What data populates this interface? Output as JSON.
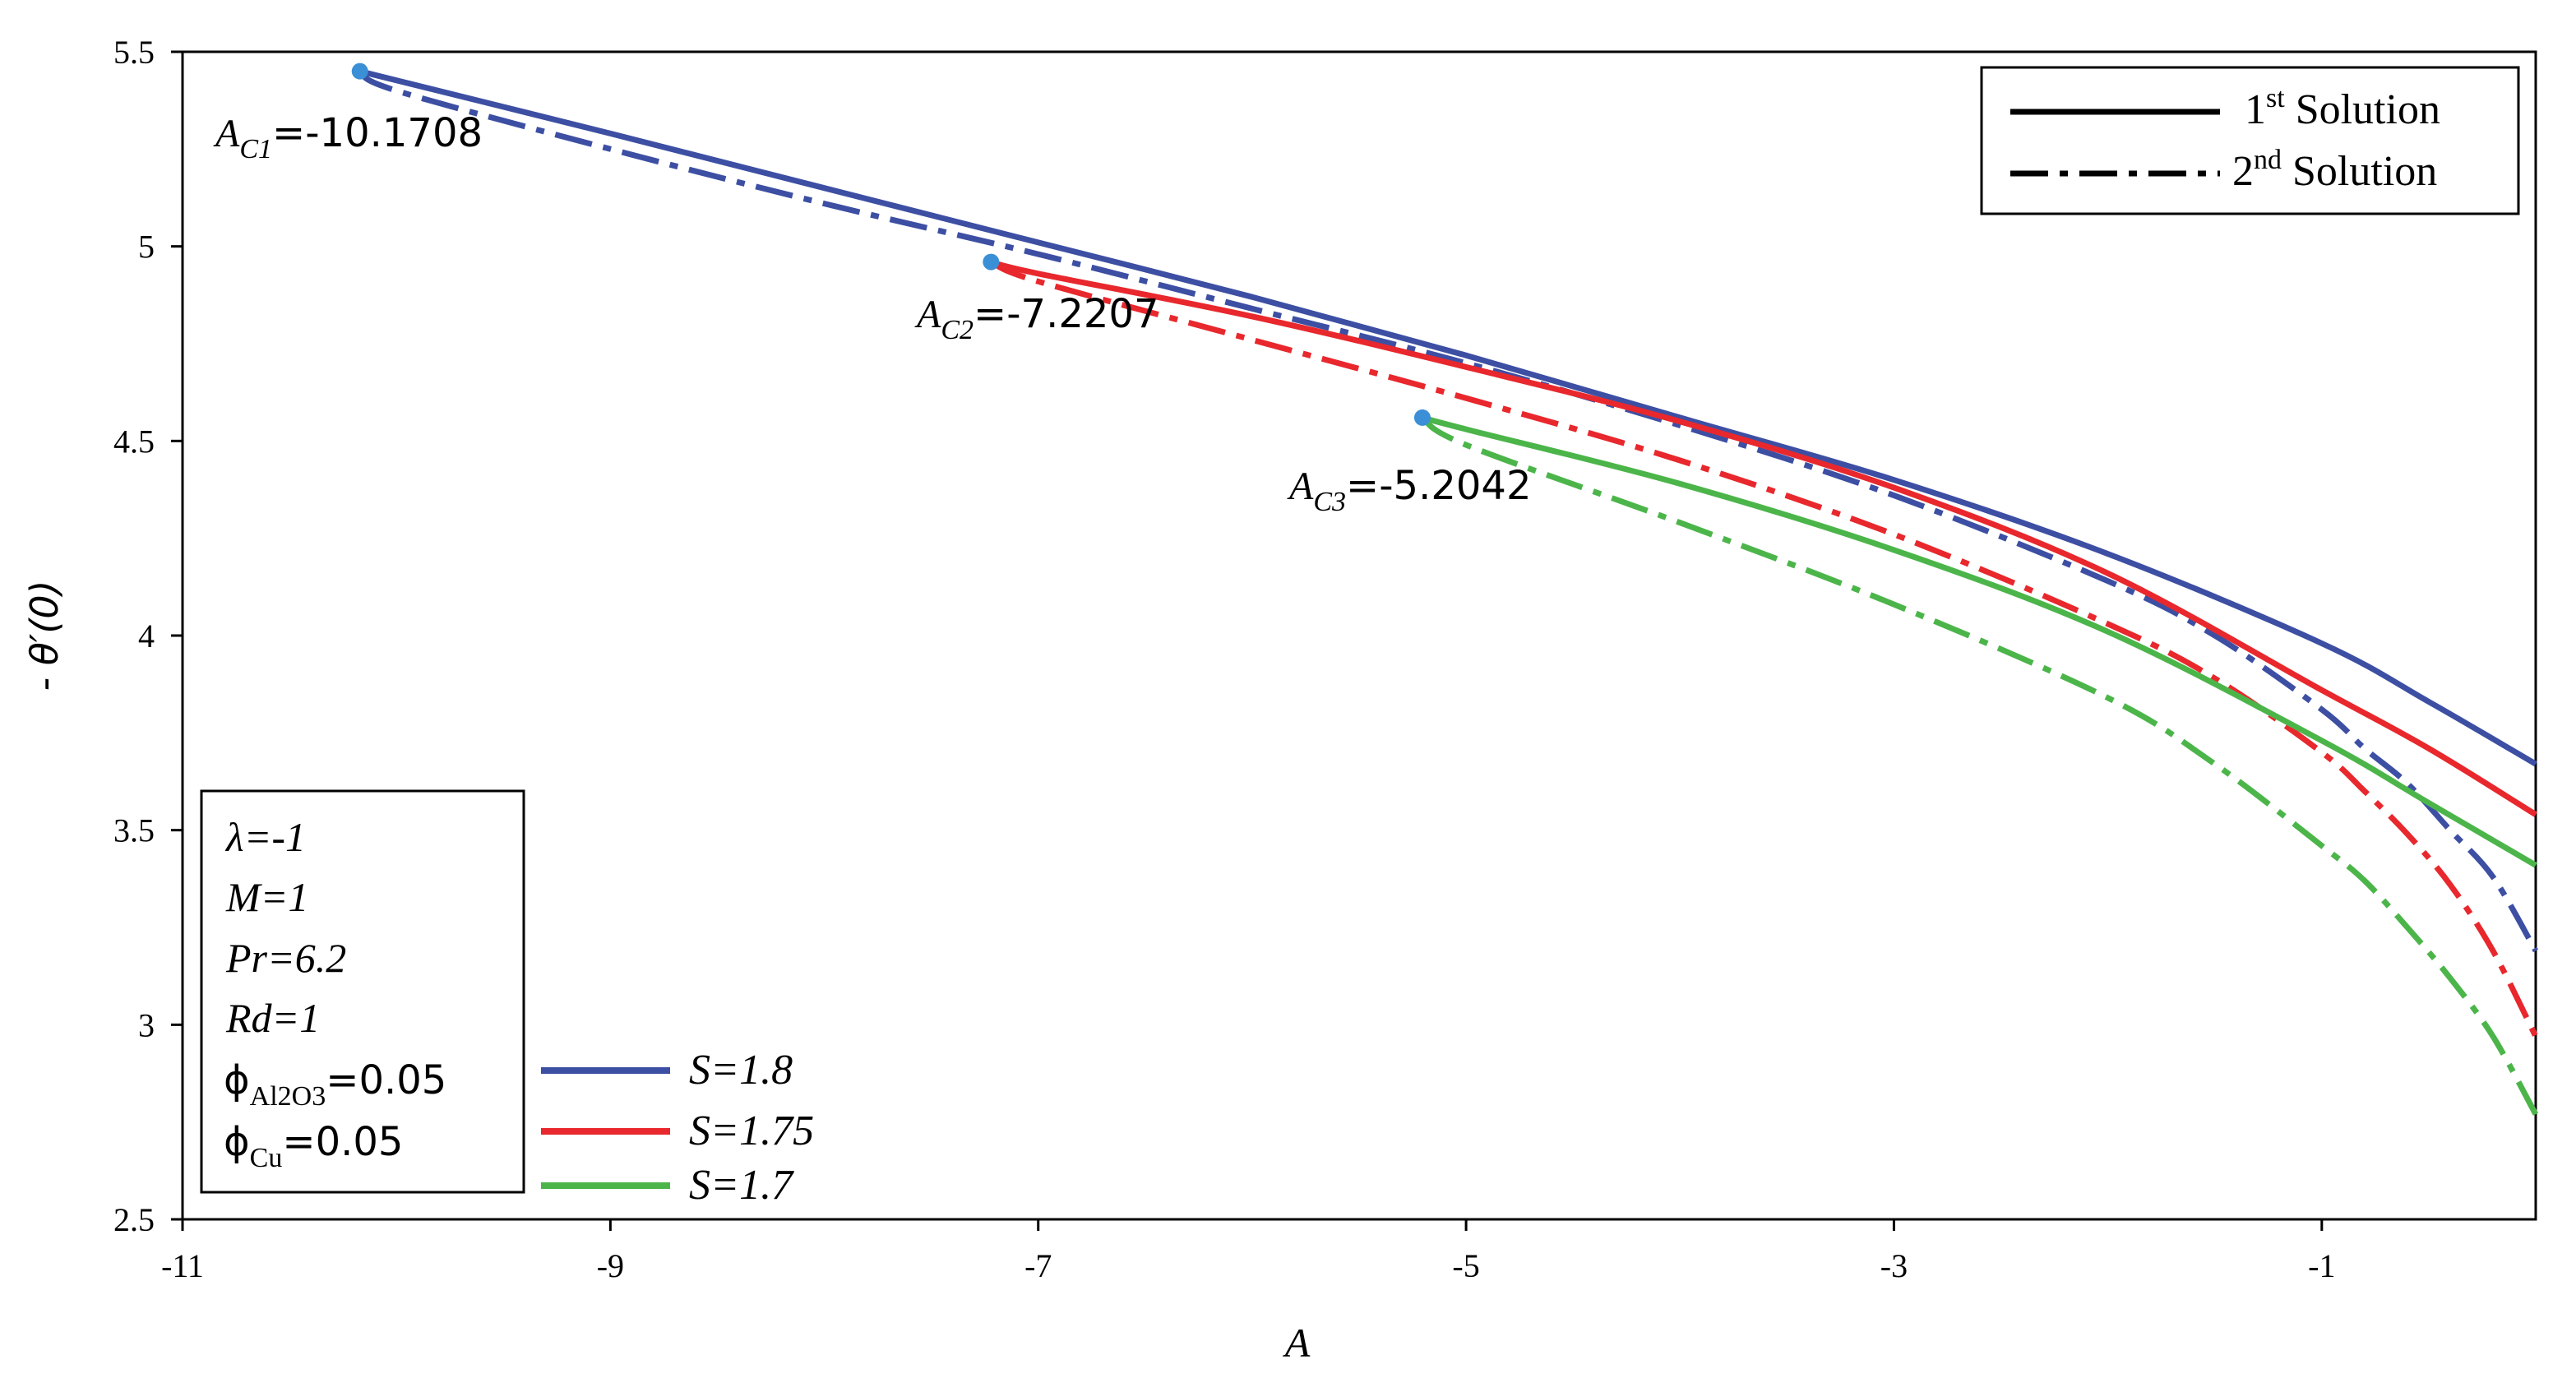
{
  "chart_data": {
    "type": "line",
    "xlabel": "A",
    "ylabel": "- θ′(0)",
    "xlim": [
      -11,
      0
    ],
    "ylim": [
      2.5,
      5.5
    ],
    "x_ticks": [
      -11,
      -9,
      -7,
      -5,
      -3,
      -1
    ],
    "y_ticks": [
      2.5,
      3,
      3.5,
      4,
      4.5,
      5,
      5.5
    ],
    "grid": false,
    "legend_solutions": [
      {
        "label": "1st Solution",
        "base": "1",
        "sup": "st",
        "rest": " Solution",
        "dash": "solid"
      },
      {
        "label": "2nd Solution",
        "base": "2",
        "sup": "nd",
        "rest": " Solution",
        "dash": "dashdot"
      }
    ],
    "legend_placement": "top-right",
    "series_legend_placement": "bottom-left",
    "params": [
      {
        "label": "λ=-1",
        "italic": true
      },
      {
        "label": "M=1",
        "italic": true
      },
      {
        "label": "Pr=6.2",
        "italic": true
      },
      {
        "label": "Rd=1",
        "italic": true
      },
      {
        "label": "ϕAl2O3=0.05",
        "phi": "ϕ",
        "sub": "Al2O3",
        "rest": "=0.05"
      },
      {
        "label": "ϕCu=0.05",
        "phi": "ϕ",
        "sub": "Cu",
        "rest": "=0.05"
      }
    ],
    "series": [
      {
        "name": "S=1.8",
        "color": "#3d4fa3",
        "critical": {
          "label": "AC1=-10.1708",
          "base": "A",
          "sub": "C1",
          "value": "=-10.1708",
          "x": -10.1708,
          "y": 5.45
        },
        "first": {
          "x": [
            -10.1708,
            -9,
            -8,
            -7,
            -6,
            -5,
            -4,
            -3,
            -2,
            -1,
            -0.5,
            0
          ],
          "y": [
            5.45,
            5.29,
            5.15,
            5.01,
            4.87,
            4.72,
            4.56,
            4.4,
            4.21,
            3.98,
            3.83,
            3.67
          ]
        },
        "second": {
          "x": [
            -10.1708,
            -10,
            -9,
            -8,
            -7,
            -6,
            -5,
            -4,
            -3,
            -2,
            -1.5,
            -1,
            -0.8,
            -0.6,
            -0.4,
            -0.2,
            0
          ],
          "y": [
            5.45,
            5.4,
            5.25,
            5.11,
            4.98,
            4.84,
            4.7,
            4.54,
            4.36,
            4.14,
            4.0,
            3.81,
            3.71,
            3.62,
            3.5,
            3.38,
            3.19
          ]
        }
      },
      {
        "name": "S=1.75",
        "color": "#e8282d",
        "critical": {
          "label": "AC2=-7.2207",
          "base": "A",
          "sub": "C2",
          "value": "=-7.2207",
          "x": -7.2207,
          "y": 4.96
        },
        "first": {
          "x": [
            -7.2207,
            -7,
            -6,
            -5,
            -4,
            -3,
            -2,
            -1,
            -0.5,
            0
          ],
          "y": [
            4.96,
            4.93,
            4.82,
            4.69,
            4.55,
            4.38,
            4.16,
            3.86,
            3.71,
            3.54
          ]
        },
        "second": {
          "x": [
            -7.2207,
            -7,
            -6,
            -5,
            -4,
            -3,
            -2,
            -1.5,
            -1,
            -0.8,
            -0.6,
            -0.4,
            -0.2,
            0
          ],
          "y": [
            4.96,
            4.91,
            4.76,
            4.61,
            4.45,
            4.26,
            4.03,
            3.89,
            3.7,
            3.6,
            3.49,
            3.36,
            3.19,
            2.97
          ]
        }
      },
      {
        "name": "S=1.7",
        "color": "#4cb54a",
        "critical": {
          "label": "AC3=-5.2042",
          "base": "A",
          "sub": "C3",
          "value": "=-5.2042",
          "x": -5.2042,
          "y": 4.56
        },
        "first": {
          "x": [
            -5.2042,
            -5,
            -4,
            -3,
            -2,
            -1,
            -0.5,
            0
          ],
          "y": [
            4.56,
            4.53,
            4.39,
            4.22,
            4.01,
            3.73,
            3.57,
            3.41
          ]
        },
        "second": {
          "x": [
            -5.2042,
            -5,
            -4,
            -3,
            -2,
            -1.5,
            -1,
            -0.8,
            -0.6,
            -0.4,
            -0.2,
            0
          ],
          "y": [
            4.56,
            4.49,
            4.29,
            4.08,
            3.84,
            3.67,
            3.46,
            3.37,
            3.25,
            3.12,
            2.97,
            2.77
          ]
        }
      }
    ]
  }
}
